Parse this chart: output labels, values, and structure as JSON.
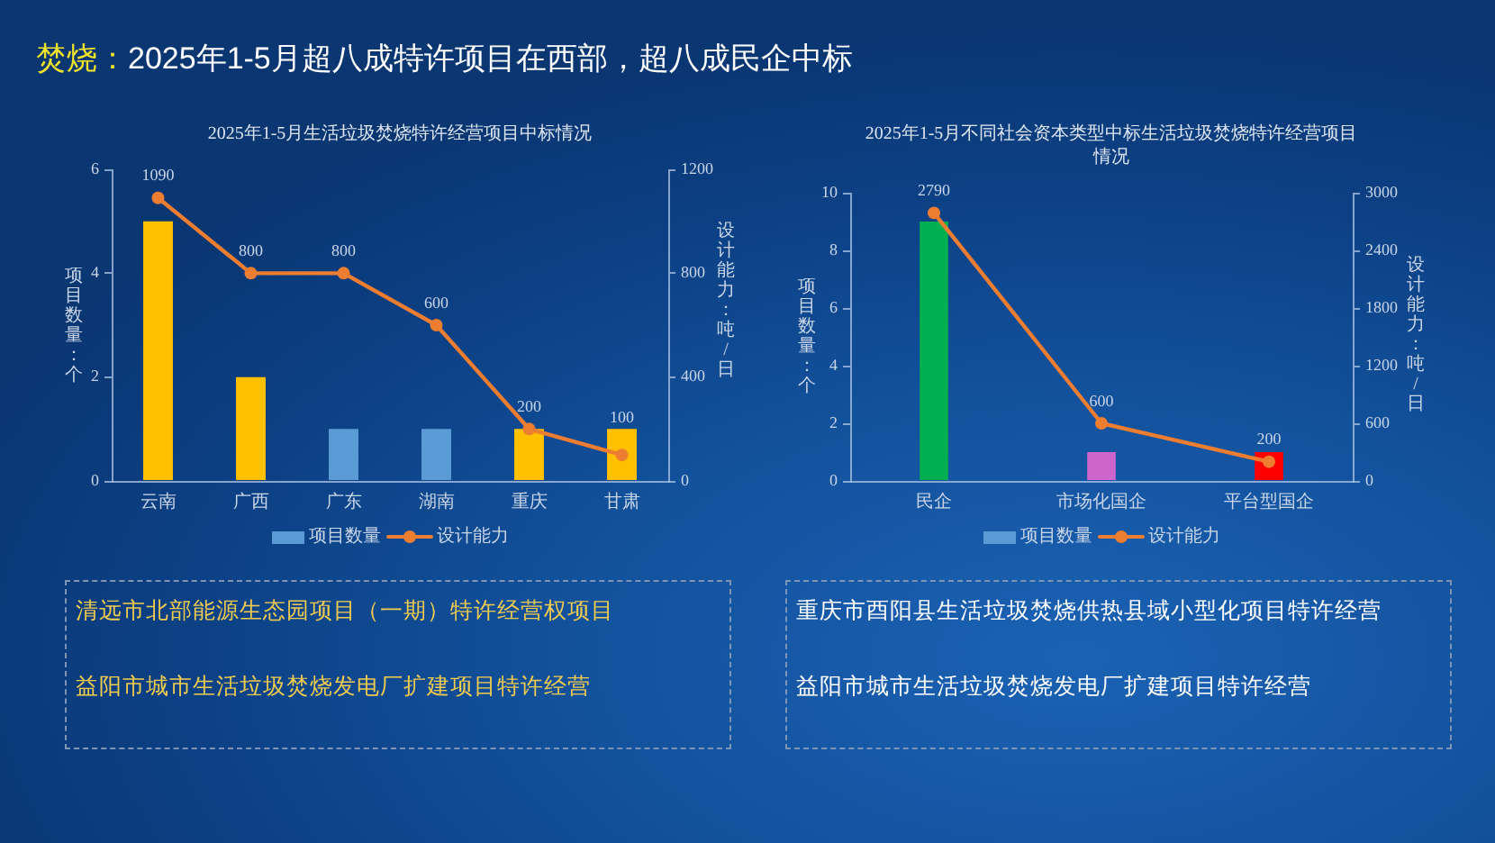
{
  "chart_data": [
    {
      "type": "other",
      "title": "焚烧：",
      "subtitle": "2025年1-5月超八成特许项目在西部，超八成民企中标"
    },
    {
      "type": "bar",
      "title": "2025年1-5月生活垃圾焚烧特许经营项目中标情况",
      "categories": [
        "云南",
        "广西",
        "广东",
        "湖南",
        "重庆",
        "甘肃"
      ],
      "ylabel": "项目数量：个",
      "y2label": "设计能力：吨/日",
      "ylim": [
        0,
        6
      ],
      "yticks": [
        0,
        2,
        4,
        6
      ],
      "y2lim": [
        0,
        1200
      ],
      "y2ticks": [
        0,
        400,
        800,
        1200
      ],
      "legend": "bottom",
      "marker": "circle",
      "series": [
        {
          "name": "项目数量",
          "type": "bar",
          "color": "#5b9bd5",
          "colors": [
            "#ffc000",
            "#ffc000",
            "#5b9bd5",
            "#5b9bd5",
            "#ffc000",
            "#ffc000"
          ],
          "values": [
            5,
            2,
            1,
            1,
            1,
            1
          ]
        },
        {
          "name": "设计能力",
          "type": "line",
          "axis": "y2",
          "color": "#ed7d31",
          "values": [
            1090,
            800,
            800,
            600,
            200,
            100
          ],
          "value_labels": [
            "1090",
            "800",
            "800",
            "600",
            "200",
            "100"
          ]
        }
      ],
      "annotations": [
        "清远市北部能源生态园项目（一期）特许经营权项目",
        "益阳市城市生活垃圾焚烧发电厂扩建项目特许经营"
      ]
    },
    {
      "type": "bar",
      "title": "2025年1-5月不同社会资本类型中标生活垃圾焚烧特许经营项目情况",
      "categories": [
        "民企",
        "市场化国企",
        "平台型国企"
      ],
      "ylabel": "项目数量：个",
      "y2label": "设计能力：吨/日",
      "ylim": [
        0,
        10
      ],
      "yticks": [
        0,
        2,
        4,
        6,
        8,
        10
      ],
      "y2lim": [
        0,
        3000
      ],
      "y2ticks": [
        0,
        600,
        1200,
        1800,
        2400,
        3000
      ],
      "legend": "bottom",
      "marker": "circle",
      "series": [
        {
          "name": "项目数量",
          "type": "bar",
          "color": "#5b9bd5",
          "colors": [
            "#00b050",
            "#cc66cc",
            "#ff0000"
          ],
          "values": [
            9,
            1,
            1
          ]
        },
        {
          "name": "设计能力",
          "type": "line",
          "axis": "y2",
          "color": "#ed7d31",
          "values": [
            2790,
            600,
            200
          ],
          "value_labels": [
            "2790",
            "600",
            "200"
          ]
        }
      ],
      "annotations": [
        "重庆市酉阳县生活垃圾焚烧供热县域小型化项目特许经营",
        "益阳市城市生活垃圾焚烧发电厂扩建项目特许经营"
      ]
    }
  ]
}
